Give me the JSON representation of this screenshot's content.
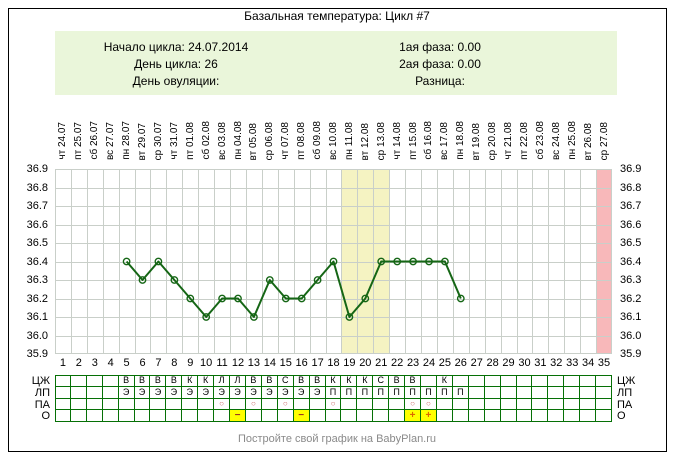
{
  "title": "Базальная температура: Цикл #7",
  "info_box": {
    "bg_color": "#eaf6da",
    "items_left": [
      "Начало цикла: 24.07.2014",
      "День цикла: 26",
      "День овуляции:"
    ],
    "items_right": [
      "1ая фаза: 0.00",
      "2ая фаза: 0.00",
      "Разница:"
    ]
  },
  "chart_data": {
    "type": "line",
    "title": "Базальная температура: Цикл #7",
    "xlabel": "День цикла",
    "ylabel": "Температура",
    "days": [
      1,
      2,
      3,
      4,
      5,
      6,
      7,
      8,
      9,
      10,
      11,
      12,
      13,
      14,
      15,
      16,
      17,
      18,
      19,
      20,
      21,
      22,
      23,
      24,
      25,
      26,
      27,
      28,
      29,
      30,
      31,
      32,
      33,
      34,
      35
    ],
    "date_labels": [
      "чт 24.07",
      "пт 25.07",
      "сб 26.07",
      "вс 27.07",
      "пн 28.07",
      "вт 29.07",
      "ср 30.07",
      "чт 31.07",
      "пт 01.08",
      "сб 02.08",
      "вс 03.08",
      "пн 04.08",
      "вт 05.08",
      "ср 06.08",
      "чт 07.08",
      "пт 08.08",
      "сб 09.08",
      "вс 10.08",
      "пн 11.08",
      "вт 12.08",
      "ср 13.08",
      "чт 14.08",
      "пт 15.08",
      "сб 16.08",
      "вс 17.08",
      "пн 18.08",
      "вт 19.08",
      "ср 20.08",
      "чт 21.08",
      "пт 22.08",
      "сб 23.08",
      "вс 24.08",
      "пн 25.08",
      "вт 26.08",
      "ср 27.08"
    ],
    "temperatures": [
      null,
      null,
      null,
      null,
      36.4,
      36.3,
      36.4,
      36.3,
      36.2,
      36.1,
      36.2,
      36.2,
      36.1,
      36.3,
      36.2,
      36.2,
      36.3,
      36.4,
      36.1,
      36.2,
      36.4,
      36.4,
      36.4,
      36.4,
      36.4,
      36.2,
      null,
      null,
      null,
      null,
      null,
      null,
      null,
      null,
      null
    ],
    "ylim": [
      35.9,
      36.9
    ],
    "y_ticks": [
      "36.9",
      "36.8",
      "36.7",
      "36.6",
      "36.5",
      "36.4",
      "36.3",
      "36.2",
      "36.1",
      "36.0",
      "35.9"
    ],
    "grid": true,
    "legend": "none",
    "line_color": "#156615",
    "grid_color": "#c9cfc9",
    "highlight_bands": [
      {
        "name": "yellow-band",
        "days": [
          19,
          21
        ],
        "color": "#f5f3c2"
      },
      {
        "name": "pink-band",
        "days": [
          35,
          35
        ],
        "color": "#f8b8ba"
      }
    ]
  },
  "legend_table": {
    "row_labels": [
      "ЦЖ",
      "ЛП",
      "ПА",
      "О"
    ],
    "rows": {
      "ЦЖ": [
        "",
        "",
        "",
        "",
        "В",
        "В",
        "В",
        "В",
        "К",
        "К",
        "Л",
        "Л",
        "В",
        "В",
        "С",
        "В",
        "В",
        "К",
        "К",
        "К",
        "С",
        "В",
        "В",
        "",
        "К",
        "",
        "",
        "",
        "",
        "",
        "",
        "",
        "",
        "",
        ""
      ],
      "ЛП": [
        "",
        "",
        "",
        "",
        "Э",
        "Э",
        "Э",
        "Э",
        "Э",
        "Э",
        "Э",
        "Э",
        "Э",
        "Э",
        "Э",
        "Э",
        "Э",
        "П",
        "П",
        "П",
        "П",
        "П",
        "П",
        "П",
        "П",
        "П",
        "",
        "",
        "",
        "",
        "",
        "",
        "",
        "",
        ""
      ],
      "ПА": [
        "",
        "",
        "",
        "",
        "",
        "",
        "",
        "",
        "",
        "",
        "○",
        "",
        "○",
        "",
        "○",
        "",
        "",
        "○",
        "",
        "",
        "",
        "",
        "○",
        "○",
        "",
        "",
        "",
        "",
        "",
        "",
        "",
        "",
        "",
        "",
        ""
      ],
      "О": [
        "",
        "",
        "",
        "",
        "",
        "",
        "",
        "",
        "",
        "",
        "",
        "−",
        "",
        "",
        "",
        "−",
        "",
        "",
        "",
        "",
        "",
        "",
        "+",
        "+",
        "",
        "",
        "",
        "",
        "",
        "",
        "",
        "",
        "",
        "",
        ""
      ]
    },
    "o_highlight_days": [
      12,
      16,
      23,
      24
    ],
    "border_color": "#067006",
    "circle_color": "#cc6666",
    "minus_color": "#993322",
    "plus_color": "#dd6600",
    "highlight_color": "#ffff00"
  },
  "footer": "Постройте свой график на BabyPlan.ru"
}
